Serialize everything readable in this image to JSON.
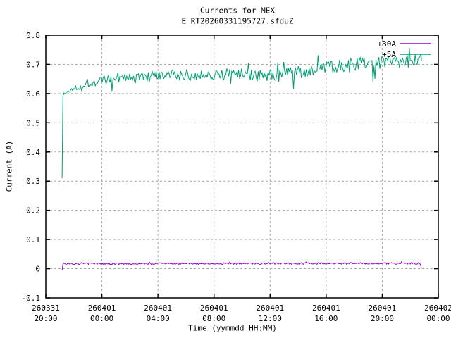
{
  "chart_data": {
    "type": "line",
    "title": "Currents for MEX",
    "subtitle": "E_RT20260331195727.sfduZ",
    "xlabel": "Time (yymmdd HH:MM)",
    "ylabel": "Current (A)",
    "ylim": [
      -0.1,
      0.8
    ],
    "ytick_step": 0.1,
    "y_tick_labels": [
      "0.8",
      "0.7",
      "0.6",
      "0.5",
      "0.4",
      "0.3",
      "0.2",
      "0.1",
      "0",
      "-0.1"
    ],
    "x_span_hours": 28,
    "tick_hours": [
      0,
      4,
      8,
      12,
      16,
      20,
      24,
      28
    ],
    "x_ticks": [
      {
        "date": "260331",
        "time": "20:00"
      },
      {
        "date": "260401",
        "time": "00:00"
      },
      {
        "date": "260401",
        "time": "04:00"
      },
      {
        "date": "260401",
        "time": "08:00"
      },
      {
        "date": "260401",
        "time": "12:00"
      },
      {
        "date": "260401",
        "time": "16:00"
      },
      {
        "date": "260401",
        "time": "20:00"
      },
      {
        "date": "260402",
        "time": "00:00"
      }
    ],
    "grid": "dashed-gray",
    "legend_position": "top-right-inside",
    "colors": {
      "grid": "#a8a8a8",
      "border": "#000000",
      "background": "#ffffff"
    },
    "series": [
      {
        "name": "+30A",
        "color": "#9400d3",
        "description": "Flat at ~0.018 A from 260331 ~21:10 to 260401 ~22:45; brief dip to -0.006 at switch-on and drop back to 0 at end",
        "start_hour": 1.16,
        "end_hour": 26.8,
        "step_hours": 0.07,
        "trend_points": [
          [
            1.16,
            -0.006
          ],
          [
            1.22,
            0.016
          ],
          [
            2,
            0.017
          ],
          [
            12,
            0.0175
          ],
          [
            25,
            0.018
          ],
          [
            26.6,
            0.018
          ],
          [
            26.72,
            0.017
          ],
          [
            26.8,
            0.001
          ]
        ],
        "noise_amp": [
          [
            1.2,
            0.003
          ],
          [
            26.8,
            0.003
          ]
        ],
        "spike_probability": 0.04,
        "spike_multiplier": 2,
        "seed": 4242
      },
      {
        "name": "+5A",
        "color": "#009e73",
        "description": "Noisy trace: switch-on spike from 0.31 A at 260331 ~21:10, then ramps from ~0.60 A up to ~0.71 A by 260401 ~22:45, peaks near 0.78 A",
        "start_hour": 1.16,
        "end_hour": 26.8,
        "step_hours": 0.07,
        "trend_points": [
          [
            1.16,
            0.31
          ],
          [
            1.22,
            0.595
          ],
          [
            1.6,
            0.607
          ],
          [
            2.0,
            0.618
          ],
          [
            2.5,
            0.627
          ],
          [
            3.0,
            0.634
          ],
          [
            3.5,
            0.64
          ],
          [
            4.0,
            0.645
          ],
          [
            5.0,
            0.651
          ],
          [
            6.0,
            0.654
          ],
          [
            7.0,
            0.657
          ],
          [
            8.0,
            0.659
          ],
          [
            9.0,
            0.661
          ],
          [
            10.0,
            0.663
          ],
          [
            11.0,
            0.664
          ],
          [
            12.0,
            0.666
          ],
          [
            13.0,
            0.668
          ],
          [
            13.8,
            0.67
          ],
          [
            14.5,
            0.663
          ],
          [
            15.5,
            0.661
          ],
          [
            16.5,
            0.667
          ],
          [
            17.5,
            0.67
          ],
          [
            18.0,
            0.672
          ],
          [
            19.0,
            0.678
          ],
          [
            19.8,
            0.685
          ],
          [
            20.5,
            0.692
          ],
          [
            21.0,
            0.697
          ],
          [
            22.0,
            0.701
          ],
          [
            23.0,
            0.703
          ],
          [
            24.0,
            0.706
          ],
          [
            25.0,
            0.71
          ],
          [
            26.0,
            0.712
          ],
          [
            26.8,
            0.713
          ]
        ],
        "noise_amp": [
          [
            1.2,
            0.007
          ],
          [
            2.5,
            0.013
          ],
          [
            4,
            0.016
          ],
          [
            8,
            0.018
          ],
          [
            14,
            0.02
          ],
          [
            20,
            0.022
          ],
          [
            26.8,
            0.023
          ]
        ],
        "spike_probability": 0.07,
        "spike_multiplier": 2.8,
        "seed": 1337
      }
    ],
    "legend": [
      {
        "label": "+30A",
        "color": "#9400d3"
      },
      {
        "label": "+5A",
        "color": "#009e73"
      }
    ]
  }
}
